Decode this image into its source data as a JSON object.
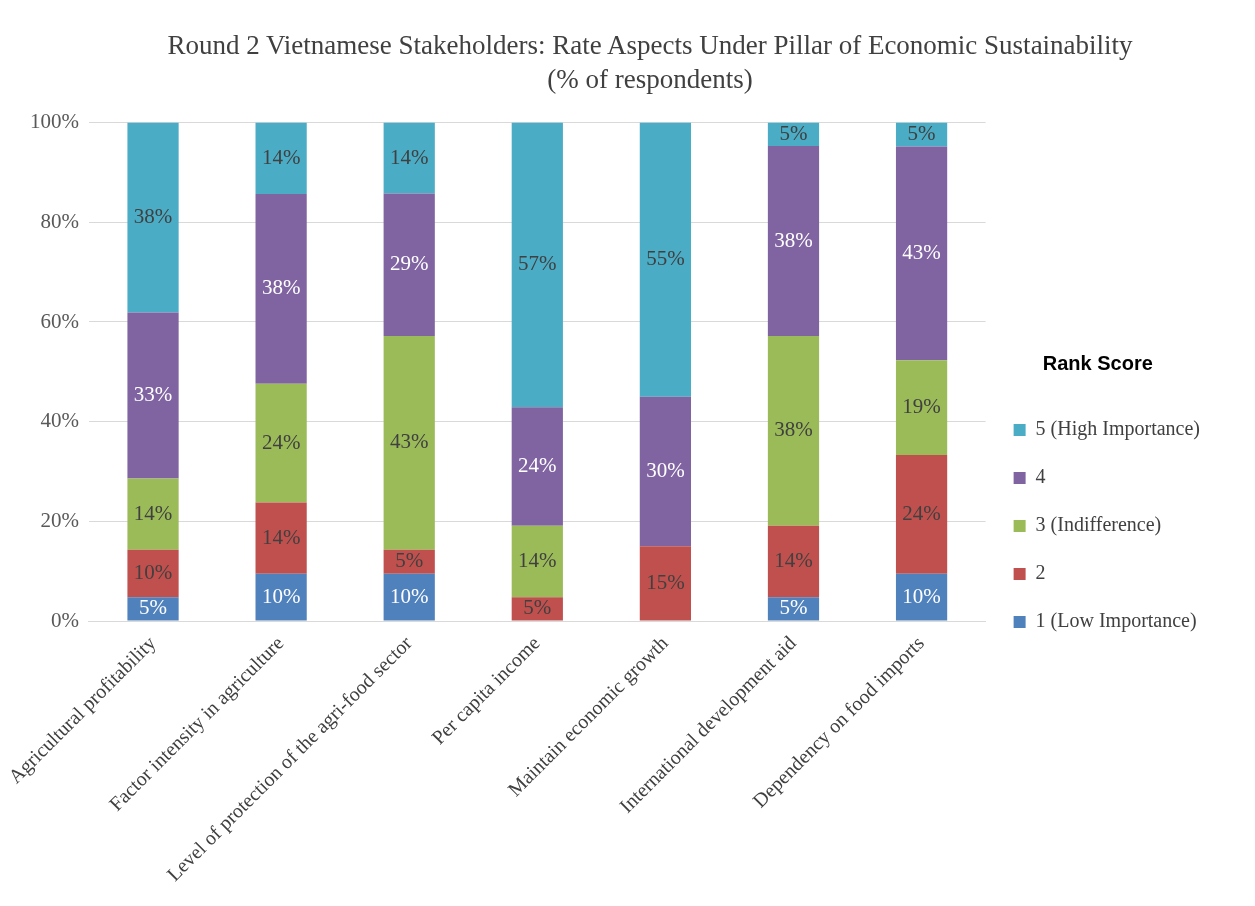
{
  "chart_data": {
    "type": "bar",
    "stacked": true,
    "title": "Round 2 Vietnamese Stakeholders: Rate Aspects Under Pillar of Economic Sustainability (% of respondents)",
    "legend_title": "Rank Score",
    "legend": "right",
    "grid": "y",
    "categories": [
      "Agricultural profitability",
      "Factor intensity in agriculture",
      "Level of protection of the agri-food sector",
      "Per capita income",
      "Maintain economic growth",
      "International development aid",
      "Dependency on food imports"
    ],
    "ylim": [
      0,
      100
    ],
    "yticks": [
      {
        "value": 0,
        "label": "0%"
      },
      {
        "value": 20,
        "label": "20%"
      },
      {
        "value": 40,
        "label": "40%"
      },
      {
        "value": 60,
        "label": "60%"
      },
      {
        "value": 80,
        "label": "80%"
      },
      {
        "value": 100,
        "label": "100%"
      }
    ],
    "series": [
      {
        "name": "1 (Low Importance)",
        "color": "#4f81bd",
        "values": [
          4.8,
          9.5,
          9.5,
          null,
          null,
          4.8,
          9.5
        ],
        "value_labels": [
          "5%",
          "10%",
          "10%",
          null,
          null,
          "5%",
          "10%"
        ]
      },
      {
        "name": "2",
        "color": "#c0504d",
        "values": [
          9.5,
          14.3,
          4.8,
          4.8,
          15,
          14.3,
          23.8
        ],
        "value_labels": [
          "10%",
          "14%",
          "5%",
          "5%",
          "15%",
          "14%",
          "24%"
        ]
      },
      {
        "name": "3 (Indifference)",
        "color": "#9bbb59",
        "values": [
          14.3,
          23.8,
          42.9,
          14.3,
          null,
          38.1,
          19.0
        ],
        "value_labels": [
          "14%",
          "24%",
          "43%",
          "14%",
          null,
          "38%",
          "19%"
        ]
      },
      {
        "name": "4",
        "color": "#8064a2",
        "values": [
          33.3,
          38.1,
          28.6,
          23.8,
          30,
          38.1,
          42.9
        ],
        "value_labels": [
          "33%",
          "38%",
          "29%",
          "24%",
          "30%",
          "38%",
          "43%"
        ]
      },
      {
        "name": "5 (High Importance)",
        "color": "#4bacc6",
        "values": [
          38.1,
          14.3,
          14.2,
          57.1,
          55,
          4.7,
          4.8
        ],
        "value_labels": [
          "38%",
          "14%",
          "14%",
          "57%",
          "55%",
          "5%",
          "5%"
        ]
      }
    ]
  }
}
